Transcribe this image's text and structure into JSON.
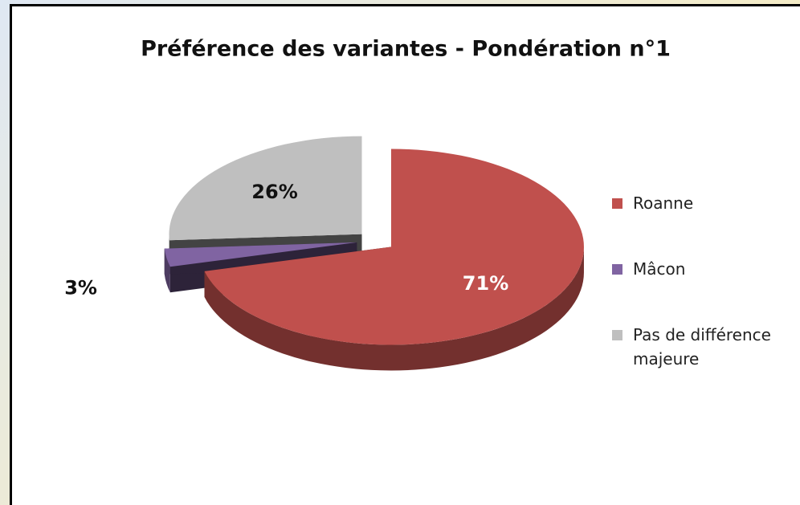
{
  "chart_data": {
    "type": "pie",
    "title": "Préférence des variantes - Pondération n°1",
    "categories": [
      "Roanne",
      "Mâcon",
      "Pas de différence majeure"
    ],
    "values": [
      71,
      3,
      26
    ],
    "value_labels": [
      "71%",
      "3%",
      "26%"
    ],
    "colors": [
      "#c0504d",
      "#8064a2",
      "#bfbfbf"
    ],
    "legend": "right",
    "exploded": true,
    "three_d": true
  }
}
